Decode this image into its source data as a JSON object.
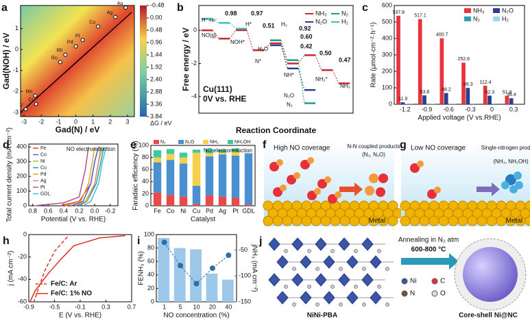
{
  "chart_data": [
    {
      "type": "scatter",
      "label": "a",
      "xlabel": "Gad(N) / eV",
      "ylabel": "Gad(NOH) / eV",
      "x": [
        -2.9,
        -2.3,
        -2.35,
        -0.9,
        -0.6,
        0.0,
        0.4,
        1.3,
        2.3,
        2.9
      ],
      "values": [
        -2.85,
        -2.6,
        -2.2,
        -0.6,
        -0.25,
        0.15,
        0.45,
        1.1,
        1.55,
        2.0
      ],
      "point_labels": [
        "V",
        "Cr",
        "Mn",
        "Ru",
        "Rh",
        "Pd",
        "Pt",
        "Cu",
        "Ag",
        "Au"
      ],
      "xlim": [
        -3.2,
        3.4
      ],
      "xticks": [
        -3,
        -2,
        -1,
        0,
        1,
        2,
        3
      ],
      "ylim": [
        -3.2,
        2.1
      ],
      "yticks": [
        -3,
        -2,
        -1,
        0,
        1
      ],
      "colorbar_label": "ΔG / eV",
      "colorbar_lim": [
        -0.48,
        3.84
      ],
      "colorbar_ticks": [
        -0.48,
        {
          "value": 0,
          "label": "0.00"
        },
        0.48,
        0.96,
        1.44,
        1.92,
        {
          "value": 2.4,
          "label": "2.40"
        },
        2.88,
        3.36,
        3.84
      ]
    },
    {
      "type": "step",
      "label": "b",
      "ylabel": "Free energy / eV",
      "xlabel": "Reaction Coordinate",
      "ylim": [
        -5,
        1.5
      ],
      "yticks": [
        -4,
        -2,
        0
      ],
      "series": [
        {
          "name": "NH₃",
          "color": "#c8282d",
          "x": [
            0,
            1,
            2,
            3,
            4,
            5,
            6,
            7,
            8
          ],
          "values": [
            0,
            -0.5,
            0.01,
            -1.2,
            -0.78,
            -2.0,
            -1.5,
            -2.4,
            -3.2
          ]
        },
        {
          "name": "N₂",
          "color": "#1f9a8a",
          "x": [
            4,
            5,
            6
          ],
          "values": [
            -0.6,
            -1.8,
            -4.4
          ]
        },
        {
          "name": "N₂O",
          "color": "#243f8f",
          "x": [
            4,
            5,
            6
          ],
          "values": [
            -0.9,
            -2.3,
            -3.6
          ]
        },
        {
          "name": "H₂",
          "color": "#3cc0b0",
          "x": [
            0,
            1,
            2
          ],
          "values": [
            0.7,
            0.45,
            0.1
          ]
        }
      ],
      "annotations": [
        "0.98",
        "0.97",
        "0.51",
        "0.92",
        "0.60",
        "0.42",
        "0.50",
        "0.47"
      ],
      "level_labels": [
        "H⁺+e⁻",
        "H*",
        "NO(g)",
        "NOH*",
        "H₂O",
        "N*",
        "NH*",
        "NH₂*",
        "NH₃",
        "H₂",
        "N₂O",
        "N₂"
      ],
      "notes": [
        "Cu(111)",
        "0V vs. RHE"
      ]
    },
    {
      "type": "bar",
      "label": "c",
      "ylabel": "Rate (μmol·cm⁻²·h⁻¹)",
      "xlabel": "Applied voltage (V vs.RHE)",
      "categories": [
        "-1.2",
        "-0.9",
        "-0.6",
        "-0.3",
        "0",
        "0.3"
      ],
      "series": [
        {
          "name": "NH₃",
          "color": "#e8343c",
          "values": [
            537.8,
            517.1,
            400.7,
            252.6,
            112.4,
            51.8
          ],
          "data_labels": true
        },
        {
          "name": "N₂O",
          "color": "#2a3f8f",
          "values": [
            11.9,
            53.8,
            68.2,
            99.3,
            52.3,
            36.4
          ],
          "data_labels": true
        },
        {
          "name": "N₂",
          "color": "#2aa0b0",
          "values": [
            2.5,
            3.1,
            2.0,
            1.5,
            1.0,
            0.5
          ],
          "data_labels": false
        },
        {
          "name": "H₂",
          "color": "#9fd8e8",
          "values": [
            1.0,
            1.5,
            1.0,
            0.5,
            0.3,
            0.2
          ],
          "data_labels": false
        }
      ],
      "ylim": [
        0,
        600
      ],
      "yticks": [
        0,
        100,
        200,
        300,
        400,
        500,
        600
      ]
    },
    {
      "type": "line",
      "label": "d",
      "ylabel": "Total current density (mA cm⁻²)",
      "xlabel": "Potential (V vs. RHE)",
      "note": "NO electroreduction",
      "xlim": [
        0.85,
        -0.3
      ],
      "xticks": [
        0.8,
        0.6,
        0.4,
        0.2,
        {
          "value": 0,
          "label": "0.0"
        },
        -0.2
      ],
      "ylim": [
        0,
        420
      ],
      "yticks": [
        0,
        100,
        200,
        300,
        400
      ],
      "series": [
        {
          "name": "Fe",
          "color": "#e3342f",
          "x": [
            0.45,
            0.2,
            0.05,
            0.0,
            -0.05
          ],
          "values": [
            0,
            30,
            150,
            300,
            400
          ]
        },
        {
          "name": "Co",
          "color": "#3a6fd8",
          "x": [
            0.3,
            0.15,
            0.05,
            0.0,
            -0.05
          ],
          "values": [
            0,
            30,
            150,
            300,
            400
          ]
        },
        {
          "name": "Ni",
          "color": "#8fcf3c",
          "x": [
            0.25,
            0.12,
            0.0,
            -0.05,
            -0.1
          ],
          "values": [
            0,
            30,
            150,
            300,
            400
          ]
        },
        {
          "name": "Cu",
          "color": "#20a39e",
          "x": [
            0.2,
            0.1,
            -0.02,
            -0.08,
            -0.12
          ],
          "values": [
            0,
            30,
            150,
            300,
            400
          ]
        },
        {
          "name": "Pd",
          "color": "#f0a020",
          "x": [
            0.38,
            0.18,
            0.08,
            0.03,
            0.0
          ],
          "values": [
            0,
            30,
            150,
            300,
            400
          ]
        },
        {
          "name": "Ag",
          "color": "#f07a7a",
          "x": [
            0.25,
            0.1,
            0.0,
            -0.05,
            -0.08
          ],
          "values": [
            0,
            30,
            150,
            300,
            400
          ]
        },
        {
          "name": "Pt",
          "color": "#b05090",
          "x": [
            0.78,
            0.4,
            0.2,
            0.12,
            0.08
          ],
          "values": [
            0,
            20,
            60,
            250,
            400
          ]
        },
        {
          "name": "GDL",
          "color": "#40c0e0",
          "x": [
            0.15,
            0.05,
            -0.05,
            -0.1,
            -0.15
          ],
          "values": [
            0,
            30,
            150,
            300,
            400
          ]
        }
      ]
    },
    {
      "type": "stacked-bar",
      "label": "e",
      "ylabel": "Faradaic efficiency (%)",
      "xlabel": "Catalyst",
      "note": "NO electroreduction",
      "categories": [
        "Fe",
        "Co",
        "Ni",
        "Cu",
        "Pd",
        "Ag",
        "Pt",
        "GDL"
      ],
      "series": [
        {
          "name": "N₂",
          "color": "#e84a4a",
          "values": [
            22,
            18,
            15,
            3,
            17,
            15,
            13,
            2
          ]
        },
        {
          "name": "N₂O",
          "color": "#4a90d0",
          "values": [
            50,
            58,
            55,
            30,
            65,
            70,
            70,
            85
          ]
        },
        {
          "name": "NH₃",
          "color": "#f5d04a",
          "values": [
            8,
            10,
            10,
            55,
            5,
            3,
            7,
            0
          ]
        },
        {
          "name": "NH₂OH",
          "color": "#3ec9a0",
          "values": [
            12,
            8,
            8,
            5,
            7,
            5,
            5,
            0
          ]
        }
      ],
      "ylim": [
        0,
        100
      ],
      "yticks": [
        0,
        20,
        40,
        60,
        80,
        100
      ]
    },
    {
      "type": "line",
      "label": "h",
      "ylabel": "j (mA cm⁻²)",
      "xlabel": "E (V vs. RHE)",
      "xlim": [
        -0.9,
        0.7
      ],
      "xticks": [
        -0.9,
        -0.5,
        -0.1,
        0.3,
        0.7
      ],
      "ylim": [
        -60,
        0
      ],
      "yticks": [
        -60,
        -40,
        -20,
        0
      ],
      "series": [
        {
          "name": "Fe/C: Ar",
          "color": "#e0301e",
          "dashed": true,
          "x": [
            -0.3,
            -0.5,
            -0.65,
            -0.75,
            -0.82
          ],
          "values": [
            -2,
            -15,
            -32,
            -48,
            -60
          ]
        },
        {
          "name": "Fe/C: 1% NO",
          "color": "#e0301e",
          "dashed": false,
          "x": [
            0.6,
            0.2,
            -0.2,
            -0.4,
            -0.6,
            -0.8,
            -0.88
          ],
          "values": [
            -1,
            -3,
            -10,
            -22,
            -35,
            -50,
            -60
          ]
        }
      ]
    },
    {
      "type": "bar",
      "label": "i",
      "ylabel": "FENH₃ (%)",
      "y2label": "jNH₃ (mA cm⁻²)",
      "xlabel": "NO concentration (%)",
      "categories": [
        "1",
        "5",
        "10",
        "20",
        "40"
      ],
      "series": [
        {
          "color": "#9ec8ea",
          "values": [
            95,
            80,
            78,
            42,
            33
          ]
        },
        {
          "color": "#2f6fa3",
          "axis": "y2",
          "values": [
            -35,
            -80,
            -115,
            -85,
            -60
          ]
        }
      ],
      "ylim": [
        0,
        100
      ],
      "yticks": [
        0,
        20,
        40,
        60,
        80,
        100
      ],
      "y2lim": [
        -150,
        -20
      ],
      "y2ticks": [
        -50,
        -100,
        -150
      ]
    }
  ],
  "diagrams": {
    "f": {
      "label": "f",
      "title": "High NO coverage",
      "products": "N-N coupled products",
      "species": "(N₂, N₂O)",
      "surface": "Metal"
    },
    "g": {
      "label": "g",
      "title": "Low NO coverage",
      "products": "Single-nitrogen products",
      "species": "(NH₃, NH₂OH)",
      "surface": "Metal"
    },
    "j": {
      "label": "j",
      "precursor": "NiNi-PBA",
      "step": "Annealing in N₂ atm",
      "temperature": "600-800 °C",
      "legend": [
        "Ni",
        "C",
        "N",
        "O"
      ],
      "product": "Core-shell Ni@NC"
    }
  }
}
